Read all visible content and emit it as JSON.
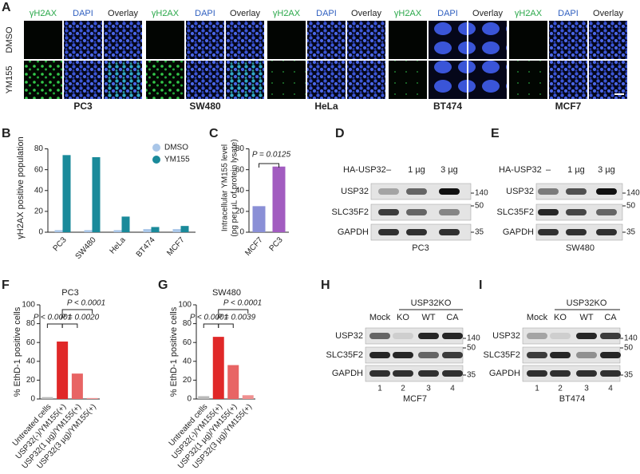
{
  "panel_letters": [
    "A",
    "B",
    "C",
    "D",
    "E",
    "F",
    "G",
    "H",
    "I"
  ],
  "microscopy": {
    "row_labels": [
      "DMSO",
      "YM155"
    ],
    "channels": [
      "γH2AX",
      "DAPI",
      "Overlay"
    ],
    "cell_lines": [
      "PC3",
      "SW480",
      "HeLa",
      "BT474",
      "MCF7"
    ]
  },
  "chart_data": [
    {
      "type": "bar",
      "y_label": "γH2AX positive population",
      "categories": [
        "PC3",
        "SW480",
        "HeLa",
        "BT474",
        "MCF7"
      ],
      "series": [
        {
          "name": "DMSO",
          "color": "#a9c6e8",
          "values": [
            2,
            2,
            2,
            3,
            3
          ]
        },
        {
          "name": "YM155",
          "color": "#1a8a9a",
          "values": [
            74,
            72,
            15,
            5,
            6
          ]
        }
      ],
      "ylim": [
        0,
        85
      ],
      "yticks": [
        0,
        20,
        40,
        60,
        80
      ],
      "legend": "upper right"
    },
    {
      "type": "bar",
      "y_label": [
        "Intracellular YM155 level",
        "(pg per µL of protein lysate)"
      ],
      "categories": [
        "MCF7",
        "PC3"
      ],
      "values": [
        25,
        63
      ],
      "colors": [
        "#8a8fd6",
        "#a25cc0"
      ],
      "annotations": [
        "P = 0.0125"
      ],
      "ylim": [
        0,
        85
      ],
      "yticks": [
        0,
        20,
        40,
        60,
        80
      ]
    },
    {
      "type": "bar",
      "title": "PC3",
      "y_label": "% EthD-1 positive cells",
      "categories": [
        "Untreated cells",
        "USP32(-)/YM155(+)",
        "USP32(1 µg)/YM155(+)",
        "USP32(3 µg)/YM155(+)"
      ],
      "values": [
        2,
        61,
        27,
        1
      ],
      "colors": [
        "#bbbbbb",
        "#e02828",
        "#e86464",
        "#f09090"
      ],
      "annotations": [
        "P < 0.0001",
        "P = 0.0020",
        "P < 0.0001"
      ],
      "ylim": [
        0,
        100
      ],
      "yticks": [
        0,
        20,
        40,
        60,
        80,
        100
      ]
    },
    {
      "type": "bar",
      "title": "SW480",
      "y_label": "% EthD-1 positive cells",
      "categories": [
        "Untreated cells",
        "USP32(-)/YM155(+)",
        "USP32(1 µg)/YM155(+)",
        "USP32(3 µg)/YM155(+)"
      ],
      "values": [
        3,
        66,
        36,
        4
      ],
      "colors": [
        "#bbbbbb",
        "#e02828",
        "#e86464",
        "#f09090"
      ],
      "annotations": [
        "P < 0.0001",
        "P = 0.0039",
        "P < 0.0001"
      ],
      "ylim": [
        0,
        100
      ],
      "yticks": [
        0,
        20,
        40,
        60,
        80,
        100
      ]
    }
  ],
  "blots": [
    {
      "treatment_label": "HA-USP32",
      "lanes": [
        "–",
        "1 µg",
        "3 µg"
      ],
      "rows": [
        "USP32",
        "SLC35F2",
        "GAPDH"
      ],
      "markers": [
        140,
        50,
        35
      ],
      "cell_line": "PC3"
    },
    {
      "treatment_label": "HA-USP32",
      "lanes": [
        "–",
        "1 µg",
        "3 µg"
      ],
      "rows": [
        "USP32",
        "SLC35F2",
        "GAPDH"
      ],
      "markers": [
        140,
        50,
        35
      ],
      "cell_line": "SW480"
    },
    {
      "group_label": "USP32KO",
      "lanes": [
        "Mock",
        "KO",
        "WT",
        "CA"
      ],
      "lane_numbers": [
        "1",
        "2",
        "3",
        "4"
      ],
      "rows": [
        "USP32",
        "SLC35F2",
        "GAPDH"
      ],
      "markers": [
        140,
        50,
        35
      ],
      "cell_line": "MCF7"
    },
    {
      "group_label": "USP32KO",
      "lanes": [
        "Mock",
        "KO",
        "WT",
        "CA"
      ],
      "lane_numbers": [
        "1",
        "2",
        "3",
        "4"
      ],
      "rows": [
        "USP32",
        "SLC35F2",
        "GAPDH"
      ],
      "markers": [
        140,
        50,
        35
      ],
      "cell_line": "BT474"
    }
  ]
}
